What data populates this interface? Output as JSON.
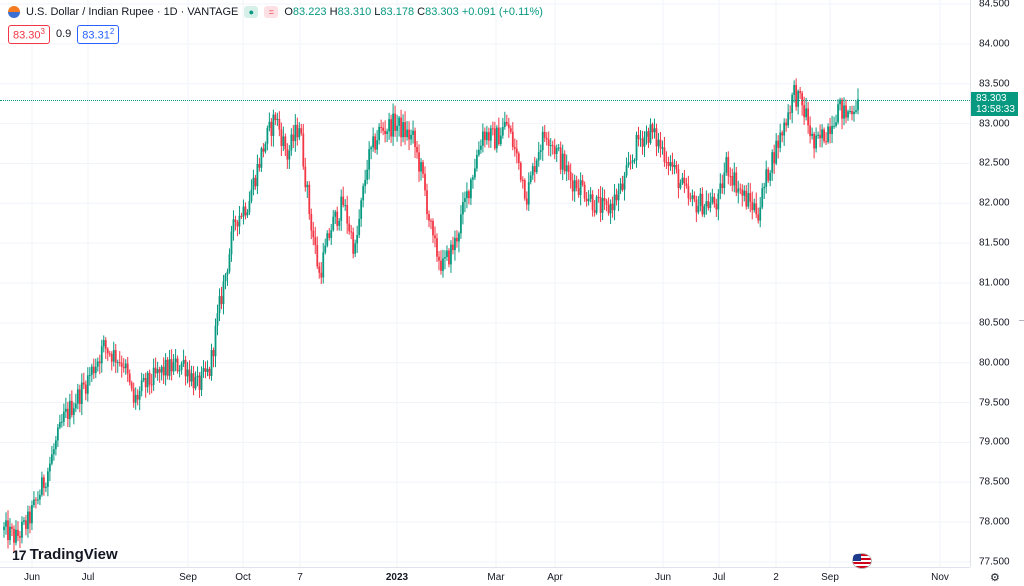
{
  "legend": {
    "title": "U.S. Dollar / Indian Rupee · 1D · VANTAGE",
    "ohlc": {
      "o_label": "O",
      "o": "83.223",
      "h_label": "H",
      "h": "83.310",
      "l_label": "L",
      "l": "83.178",
      "c_label": "C",
      "c": "83.303",
      "change": "+0.091 (+0.11%)"
    }
  },
  "quote": {
    "sell_main": "83.30",
    "sell_sup": "3",
    "spread": "0.9",
    "buy_main": "83.31",
    "buy_sup": "2"
  },
  "price_label": {
    "price": "83.303",
    "countdown": "13:58:33"
  },
  "branding": {
    "logo_text": "TradingView"
  },
  "colors": {
    "up": "#089981",
    "down": "#f23645",
    "grid": "#f0f3fa"
  },
  "icons": [
    "symbol-icon",
    "eye-icon",
    "tradingview-logo-icon",
    "us-flag-icon",
    "settings-icon"
  ],
  "chart_data": {
    "type": "candlestick",
    "symbol": "USDINR",
    "timeframe": "1D",
    "y_ticks": [
      "84.500",
      "84.000",
      "83.500",
      "83.000",
      "82.500",
      "82.000",
      "81.500",
      "81.000",
      "80.500",
      "80.000",
      "79.500",
      "79.000",
      "78.500",
      "78.000",
      "77.500"
    ],
    "ylim": [
      77.4,
      84.55
    ],
    "x_ticks": [
      {
        "label": "Jun"
      },
      {
        "label": "Jul"
      },
      {
        "label": "Sep"
      },
      {
        "label": "Oct"
      },
      {
        "label": "7"
      },
      {
        "label": "2023",
        "bold": true
      },
      {
        "label": "Mar"
      },
      {
        "label": "Apr"
      },
      {
        "label": "Jun"
      },
      {
        "label": "Jul"
      },
      {
        "label": "2"
      },
      {
        "label": "Sep"
      },
      {
        "label": "Nov"
      }
    ],
    "anchors": [
      [
        77.9,
        0
      ],
      [
        77.8,
        6
      ],
      [
        78.0,
        12
      ],
      [
        78.5,
        20
      ],
      [
        79.3,
        30
      ],
      [
        79.7,
        40
      ],
      [
        80.2,
        50
      ],
      [
        80.0,
        60
      ],
      [
        79.5,
        65
      ],
      [
        79.7,
        70
      ],
      [
        79.9,
        80
      ],
      [
        80.0,
        90
      ],
      [
        79.7,
        97
      ],
      [
        79.9,
        103
      ],
      [
        80.7,
        108
      ],
      [
        81.8,
        116
      ],
      [
        82.0,
        122
      ],
      [
        82.7,
        130
      ],
      [
        83.1,
        136
      ],
      [
        82.6,
        142
      ],
      [
        83.0,
        148
      ],
      [
        81.9,
        153
      ],
      [
        81.1,
        158
      ],
      [
        81.7,
        164
      ],
      [
        82.0,
        170
      ],
      [
        81.4,
        176
      ],
      [
        82.5,
        182
      ],
      [
        82.9,
        188
      ],
      [
        83.0,
        196
      ],
      [
        82.8,
        205
      ],
      [
        82.3,
        210
      ],
      [
        81.5,
        215
      ],
      [
        81.2,
        220
      ],
      [
        81.5,
        226
      ],
      [
        82.1,
        232
      ],
      [
        82.9,
        240
      ],
      [
        82.8,
        246
      ],
      [
        83.0,
        252
      ],
      [
        82.5,
        258
      ],
      [
        82.1,
        262
      ],
      [
        82.7,
        268
      ],
      [
        82.9,
        272
      ],
      [
        82.6,
        278
      ],
      [
        82.3,
        284
      ],
      [
        82.2,
        290
      ],
      [
        82.0,
        296
      ],
      [
        81.9,
        302
      ],
      [
        82.2,
        310
      ],
      [
        82.8,
        318
      ],
      [
        82.9,
        324
      ],
      [
        82.6,
        332
      ],
      [
        82.3,
        338
      ],
      [
        82.0,
        344
      ],
      [
        82.0,
        350
      ],
      [
        82.0,
        358
      ],
      [
        82.5,
        362
      ],
      [
        82.1,
        370
      ],
      [
        82.0,
        374
      ],
      [
        81.9,
        378
      ],
      [
        82.5,
        384
      ],
      [
        82.9,
        390
      ],
      [
        83.4,
        396
      ],
      [
        83.1,
        402
      ],
      [
        82.7,
        406
      ],
      [
        82.9,
        412
      ],
      [
        83.2,
        418
      ],
      [
        83.1,
        422
      ],
      [
        83.3,
        428
      ]
    ]
  }
}
